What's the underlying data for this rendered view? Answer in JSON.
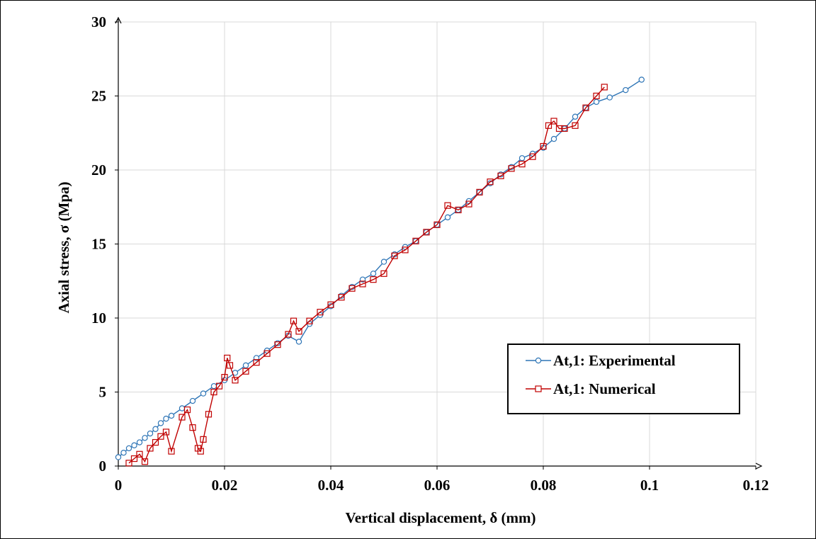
{
  "chart_data": {
    "type": "line",
    "xlabel": "Vertical displacement, δ (mm)",
    "ylabel": "Axial stress, σ (Mpa)",
    "xlim": [
      0,
      0.12
    ],
    "ylim": [
      0,
      30
    ],
    "x_ticks": [
      0,
      0.02,
      0.04,
      0.06,
      0.08,
      0.1,
      0.12
    ],
    "x_tick_labels": [
      "0",
      "0.02",
      "0.04",
      "0.06",
      "0.08",
      "0.1",
      "0.12"
    ],
    "y_ticks": [
      0,
      5,
      10,
      15,
      20,
      25,
      30
    ],
    "y_tick_labels": [
      "0",
      "5",
      "10",
      "15",
      "20",
      "25",
      "30"
    ],
    "grid": true,
    "legend_position": "lower-right",
    "series": [
      {
        "name": "At,1: Experimental",
        "color": "#2E75B6",
        "marker": "circle",
        "x": [
          0.0,
          0.001,
          0.002,
          0.003,
          0.004,
          0.005,
          0.006,
          0.007,
          0.008,
          0.009,
          0.01,
          0.012,
          0.014,
          0.016,
          0.018,
          0.02,
          0.022,
          0.024,
          0.026,
          0.028,
          0.03,
          0.032,
          0.034,
          0.036,
          0.038,
          0.04,
          0.042,
          0.044,
          0.046,
          0.048,
          0.05,
          0.052,
          0.054,
          0.056,
          0.058,
          0.06,
          0.062,
          0.064,
          0.066,
          0.068,
          0.07,
          0.072,
          0.074,
          0.076,
          0.078,
          0.08,
          0.082,
          0.084,
          0.086,
          0.088,
          0.09,
          0.0925,
          0.0955,
          0.0985
        ],
        "y": [
          0.6,
          0.9,
          1.2,
          1.4,
          1.6,
          1.9,
          2.2,
          2.5,
          2.9,
          3.2,
          3.4,
          3.9,
          4.4,
          4.9,
          5.4,
          5.8,
          6.3,
          6.8,
          7.3,
          7.8,
          8.3,
          8.8,
          8.4,
          9.6,
          10.2,
          10.8,
          11.5,
          12.1,
          12.6,
          13.0,
          13.8,
          14.3,
          14.8,
          15.2,
          15.8,
          16.3,
          16.8,
          17.3,
          17.9,
          18.5,
          19.1,
          19.7,
          20.2,
          20.8,
          21.1,
          21.5,
          22.1,
          22.8,
          23.6,
          24.2,
          24.6,
          24.9,
          25.4,
          26.1
        ]
      },
      {
        "name": "At,1: Numerical",
        "color": "#C00000",
        "marker": "square",
        "x": [
          0.002,
          0.003,
          0.004,
          0.005,
          0.006,
          0.007,
          0.008,
          0.009,
          0.01,
          0.012,
          0.013,
          0.014,
          0.015,
          0.0155,
          0.016,
          0.017,
          0.018,
          0.019,
          0.02,
          0.0205,
          0.021,
          0.022,
          0.024,
          0.026,
          0.028,
          0.03,
          0.032,
          0.033,
          0.034,
          0.036,
          0.038,
          0.04,
          0.042,
          0.044,
          0.046,
          0.048,
          0.05,
          0.052,
          0.054,
          0.056,
          0.058,
          0.06,
          0.062,
          0.064,
          0.066,
          0.068,
          0.07,
          0.072,
          0.074,
          0.076,
          0.078,
          0.08,
          0.081,
          0.082,
          0.083,
          0.084,
          0.086,
          0.088,
          0.09,
          0.0915
        ],
        "y": [
          0.2,
          0.5,
          0.8,
          0.3,
          1.2,
          1.6,
          2.0,
          2.3,
          1.0,
          3.3,
          3.8,
          2.6,
          1.2,
          1.0,
          1.8,
          3.5,
          5.0,
          5.4,
          6.0,
          7.3,
          6.8,
          5.8,
          6.4,
          7.0,
          7.6,
          8.2,
          8.9,
          9.8,
          9.1,
          9.8,
          10.4,
          10.9,
          11.4,
          12.0,
          12.3,
          12.6,
          13.0,
          14.2,
          14.6,
          15.2,
          15.8,
          16.3,
          17.6,
          17.3,
          17.7,
          18.5,
          19.2,
          19.6,
          20.1,
          20.4,
          20.9,
          21.6,
          23.0,
          23.3,
          22.8,
          22.8,
          23.0,
          24.2,
          25.0,
          25.6
        ]
      }
    ]
  }
}
